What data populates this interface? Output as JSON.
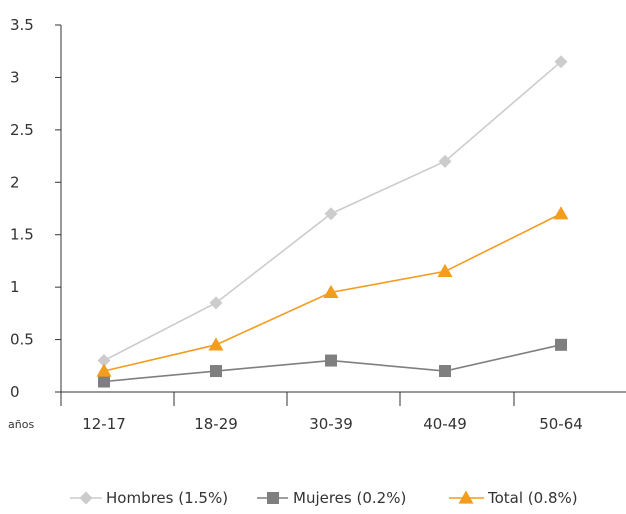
{
  "chart_data": {
    "type": "line",
    "title": "",
    "xlabel": "años",
    "ylabel": "",
    "categories": [
      "12-17",
      "18-29",
      "30-39",
      "40-49",
      "50-64"
    ],
    "ylim": [
      0,
      3.5
    ],
    "yticks": [
      0,
      0.5,
      1,
      1.5,
      2,
      2.5,
      3,
      3.5
    ],
    "ytick_labels": [
      "0",
      "0.5",
      "1",
      "1.5",
      "2",
      "2.5",
      "3",
      "3.5"
    ],
    "grid": false,
    "legend_position": "bottom",
    "series": [
      {
        "name": "Hombres (1.5%)",
        "values": [
          0.3,
          0.85,
          1.7,
          2.2,
          3.15
        ],
        "color": "#cccccc",
        "marker": "diamond"
      },
      {
        "name": "Mujeres (0.2%)",
        "values": [
          0.1,
          0.2,
          0.3,
          0.2,
          0.45
        ],
        "color": "#7f7f7f",
        "marker": "square"
      },
      {
        "name": "Total (0.8%)",
        "values": [
          0.2,
          0.45,
          0.95,
          1.15,
          1.7
        ],
        "color": "#f39c1d",
        "marker": "triangle"
      }
    ]
  }
}
